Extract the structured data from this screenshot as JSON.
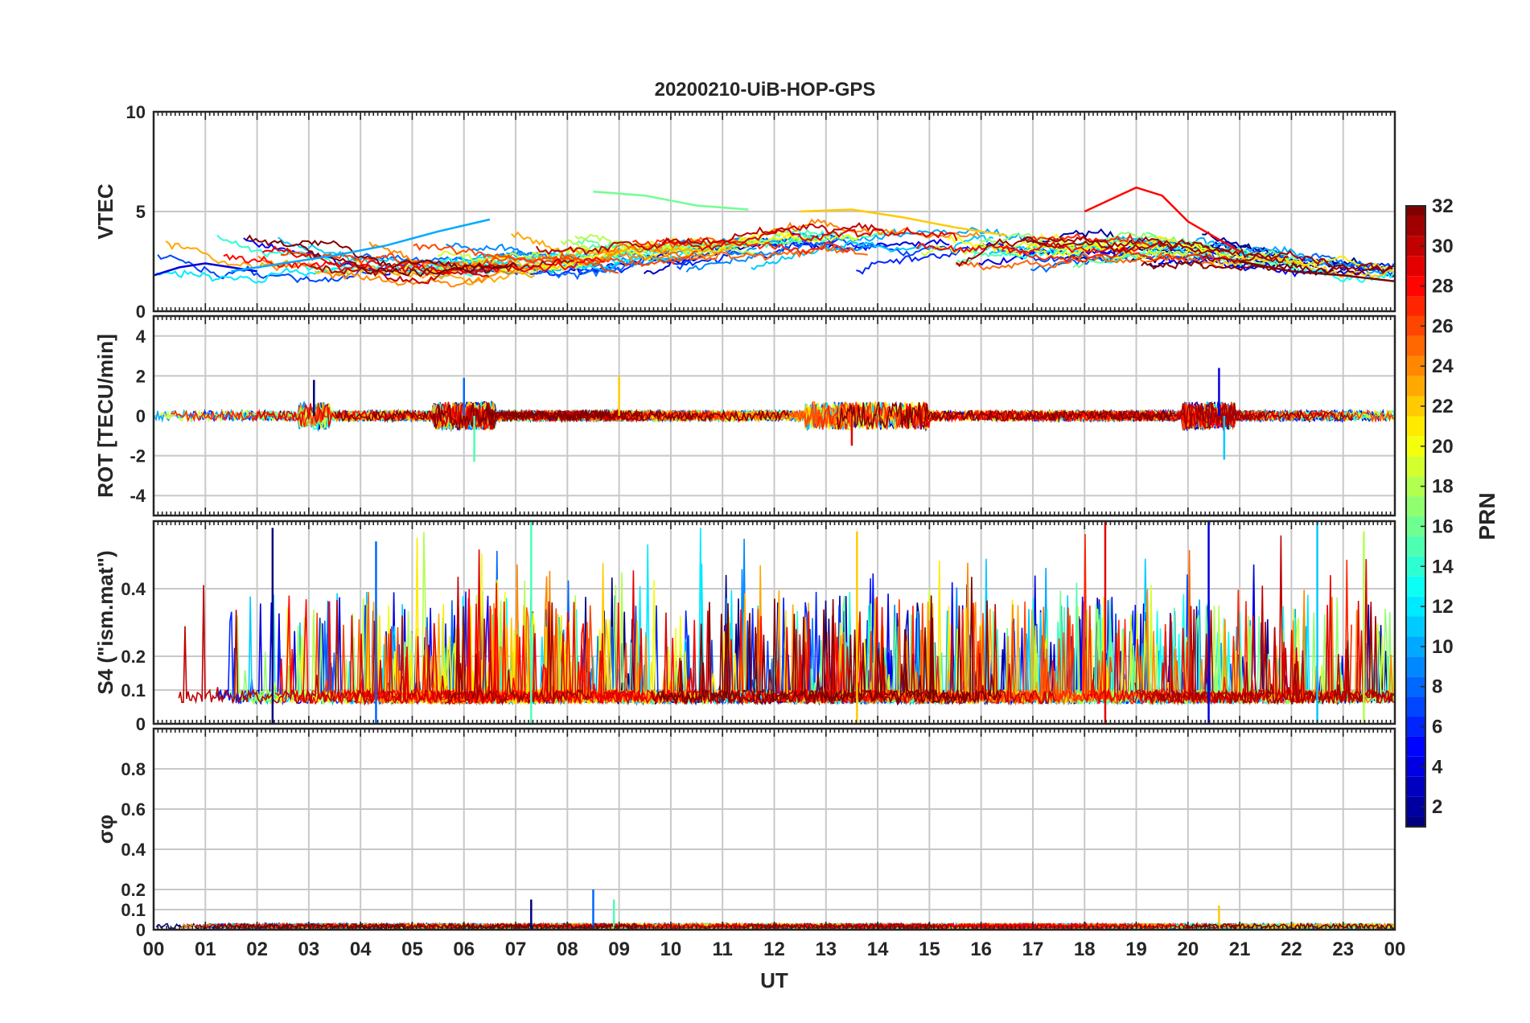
{
  "title": "20200210-UiB-HOP-GPS",
  "colorbar": {
    "label": "PRN",
    "min": 1,
    "max": 32,
    "colormap": "jet",
    "ticks": [
      "2",
      "4",
      "6",
      "8",
      "10",
      "12",
      "14",
      "16",
      "18",
      "20",
      "22",
      "24",
      "26",
      "28",
      "30",
      "32"
    ]
  },
  "chart_data": [
    {
      "type": "line",
      "ylabel": "VTEC",
      "ylim": [
        0,
        10
      ],
      "yticks": [
        "0",
        "5",
        "10"
      ],
      "xlim": [
        0,
        24
      ],
      "grid": true,
      "trend": "smooth arcs around 1–3 TECU early in the day, rising to 3–5 TECU 05–20 UT with peaks near 6–7 TECU around 18–20 UT, falling to 1–3.5 TECU after 21 UT",
      "series": [
        {
          "x": [
            0.0,
            0.5,
            1.0,
            1.5,
            2.0
          ],
          "y": [
            1.8,
            2.2,
            2.4,
            2.2,
            2.0
          ]
        },
        {
          "x": [
            1.5,
            2.5,
            3.5,
            4.5,
            5.5,
            6.5
          ],
          "y": [
            2.0,
            2.4,
            2.8,
            3.3,
            4.0,
            4.6
          ]
        },
        {
          "x": [
            8.5,
            9.5,
            10.5,
            11.5
          ],
          "y": [
            6.0,
            5.8,
            5.3,
            5.1
          ]
        },
        {
          "x": [
            12.5,
            13.5,
            14.5,
            15.5,
            16.5
          ],
          "y": [
            5.0,
            5.1,
            4.7,
            4.2,
            3.8
          ]
        },
        {
          "x": [
            18.0,
            19.0,
            19.5,
            20.0,
            21.0
          ],
          "y": [
            5.0,
            6.2,
            5.8,
            4.5,
            3.0
          ]
        },
        {
          "x": [
            21.0,
            22.0,
            23.0,
            24.0
          ],
          "y": [
            2.5,
            2.0,
            1.8,
            1.5
          ]
        }
      ]
    },
    {
      "type": "line",
      "ylabel": "ROT [TECU/min]",
      "ylim": [
        -5,
        5
      ],
      "yticks": [
        "-4",
        "-2",
        "0",
        "2",
        "4"
      ],
      "xlim": [
        0,
        24
      ],
      "grid": true,
      "trend": "centered on 0 with mostly ±0.5 noise; spikes near 03 UT (±2), 06 UT (+2 / −2.3), 13–14 UT (±1.5), 20.5 UT (+2.4 / −2.3)",
      "series": [
        {
          "x": [
            3.1,
            6.0,
            6.2,
            9.0,
            13.5,
            20.6,
            20.7
          ],
          "y": [
            1.8,
            1.9,
            -2.3,
            2.0,
            -1.5,
            2.4,
            -2.2
          ]
        }
      ]
    },
    {
      "type": "line",
      "ylabel": "S4 (\"ism.mat\")",
      "ylim": [
        0,
        0.6
      ],
      "yticks": [
        "0",
        "0.1",
        "0.2",
        "0.4"
      ],
      "xlim": [
        0,
        24
      ],
      "grid": true,
      "trend": "baseline 0.05–0.1 with frequent bursts to 0.2–0.4; tallest peaks reach about 0.55–0.6 near 02, 07.3, 13.6, 18.4, 20.4 and 22.5 UT",
      "series": [
        {
          "x": [
            2.3,
            4.3,
            7.3,
            13.6,
            18.4,
            20.4,
            22.5,
            23.4
          ],
          "y": [
            0.58,
            0.54,
            0.6,
            0.57,
            0.6,
            0.6,
            0.6,
            0.57
          ]
        }
      ]
    },
    {
      "type": "line",
      "ylabel": "σφ",
      "ylim": [
        0,
        1
      ],
      "yticks": [
        "0",
        "0.1",
        "0.2",
        "0.4",
        "0.6",
        "0.8"
      ],
      "xlim": [
        0,
        24
      ],
      "grid": true,
      "trend": "near zero (< 0.05) all day; isolated spikes to 0.2 near 08.5 UT, 0.15 near 07.3 and 08.9 UT, 0.12 near 20.6 UT",
      "series": [
        {
          "x": [
            7.3,
            8.5,
            8.9,
            20.6
          ],
          "y": [
            0.15,
            0.2,
            0.15,
            0.12
          ]
        }
      ]
    }
  ],
  "x_axis": {
    "label": "UT",
    "ticks": [
      "00",
      "01",
      "02",
      "03",
      "04",
      "05",
      "06",
      "07",
      "08",
      "09",
      "10",
      "11",
      "12",
      "13",
      "14",
      "15",
      "16",
      "17",
      "18",
      "19",
      "20",
      "21",
      "22",
      "23",
      "00"
    ]
  }
}
